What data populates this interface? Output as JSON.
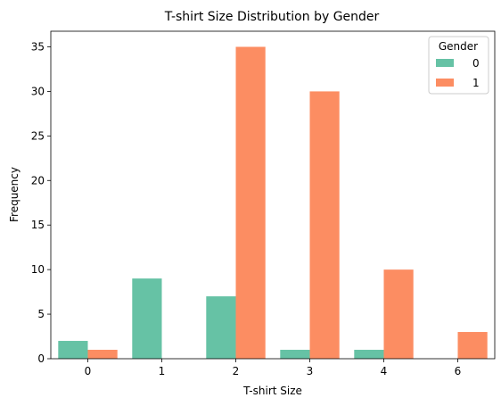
{
  "chart_data": {
    "type": "bar",
    "title": "T-shirt Size Distribution by Gender",
    "xlabel": "T-shirt Size",
    "ylabel": "Frequency",
    "categories": [
      "0",
      "1",
      "2",
      "3",
      "4",
      "6"
    ],
    "series": [
      {
        "name": "0",
        "color": "#66c2a5",
        "values": [
          2,
          9,
          7,
          1,
          1,
          0
        ]
      },
      {
        "name": "1",
        "color": "#fc8d62",
        "values": [
          1,
          0,
          35,
          30,
          10,
          3
        ]
      }
    ],
    "ylim": [
      0,
      36.75
    ],
    "yticks": [
      0,
      5,
      10,
      15,
      20,
      25,
      30,
      35
    ],
    "grid": false,
    "legend": {
      "title": "Gender",
      "placement": "top-right"
    }
  }
}
